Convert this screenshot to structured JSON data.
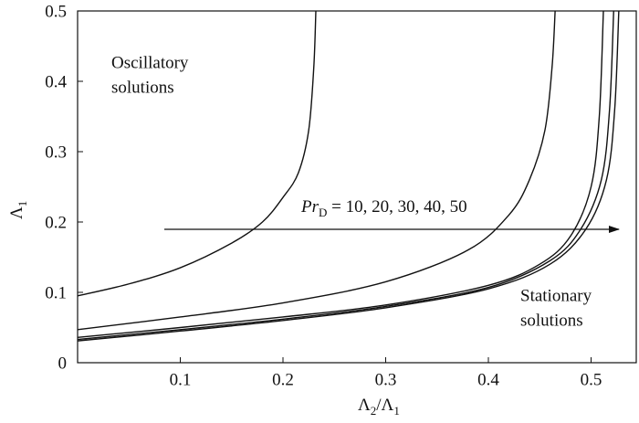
{
  "chart_data": {
    "type": "line",
    "xlim": [
      0,
      0.544
    ],
    "ylim": [
      0,
      0.5
    ],
    "xticks": [
      0.1,
      0.2,
      0.3,
      0.4,
      0.5
    ],
    "yticks": [
      0,
      0.1,
      0.2,
      0.3,
      0.4,
      0.5
    ],
    "x_label": {
      "symbol": "Λ",
      "sub": "2",
      "slash": "/Λ",
      "sub2": "1"
    },
    "y_label": {
      "symbol": "Λ",
      "sub": "1"
    },
    "annotation": {
      "italic": "Pr",
      "sub": "D",
      "text": " = 10, 20, 30, 40, 50"
    },
    "region_top": [
      "Oscillatory",
      "solutions"
    ],
    "region_bottom": [
      "Stationary",
      "solutions"
    ],
    "series": [
      {
        "color": "#111111",
        "x": [
          0,
          0.05,
          0.1,
          0.15,
          0.18,
          0.2,
          0.215,
          0.225,
          0.23,
          0.232
        ],
        "values": [
          0.095,
          0.112,
          0.135,
          0.17,
          0.2,
          0.235,
          0.27,
          0.33,
          0.42,
          0.5
        ]
      },
      {
        "color": "#111111",
        "x": [
          0,
          0.1,
          0.2,
          0.3,
          0.38,
          0.42,
          0.44,
          0.455,
          0.462,
          0.465
        ],
        "values": [
          0.047,
          0.065,
          0.085,
          0.115,
          0.16,
          0.21,
          0.26,
          0.33,
          0.42,
          0.5
        ]
      },
      {
        "color": "#111111",
        "x": [
          0,
          0.1,
          0.2,
          0.3,
          0.4,
          0.45,
          0.48,
          0.5,
          0.508,
          0.512
        ],
        "values": [
          0.036,
          0.05,
          0.065,
          0.082,
          0.11,
          0.14,
          0.18,
          0.25,
          0.35,
          0.5
        ]
      },
      {
        "color": "#111111",
        "x": [
          0,
          0.1,
          0.2,
          0.3,
          0.4,
          0.46,
          0.49,
          0.51,
          0.518,
          0.522
        ],
        "values": [
          0.033,
          0.047,
          0.062,
          0.08,
          0.107,
          0.145,
          0.19,
          0.26,
          0.36,
          0.5
        ]
      },
      {
        "color": "#111111",
        "x": [
          0,
          0.1,
          0.2,
          0.3,
          0.4,
          0.46,
          0.495,
          0.515,
          0.523,
          0.527
        ],
        "values": [
          0.031,
          0.045,
          0.06,
          0.078,
          0.105,
          0.14,
          0.19,
          0.26,
          0.36,
          0.5
        ]
      }
    ]
  }
}
